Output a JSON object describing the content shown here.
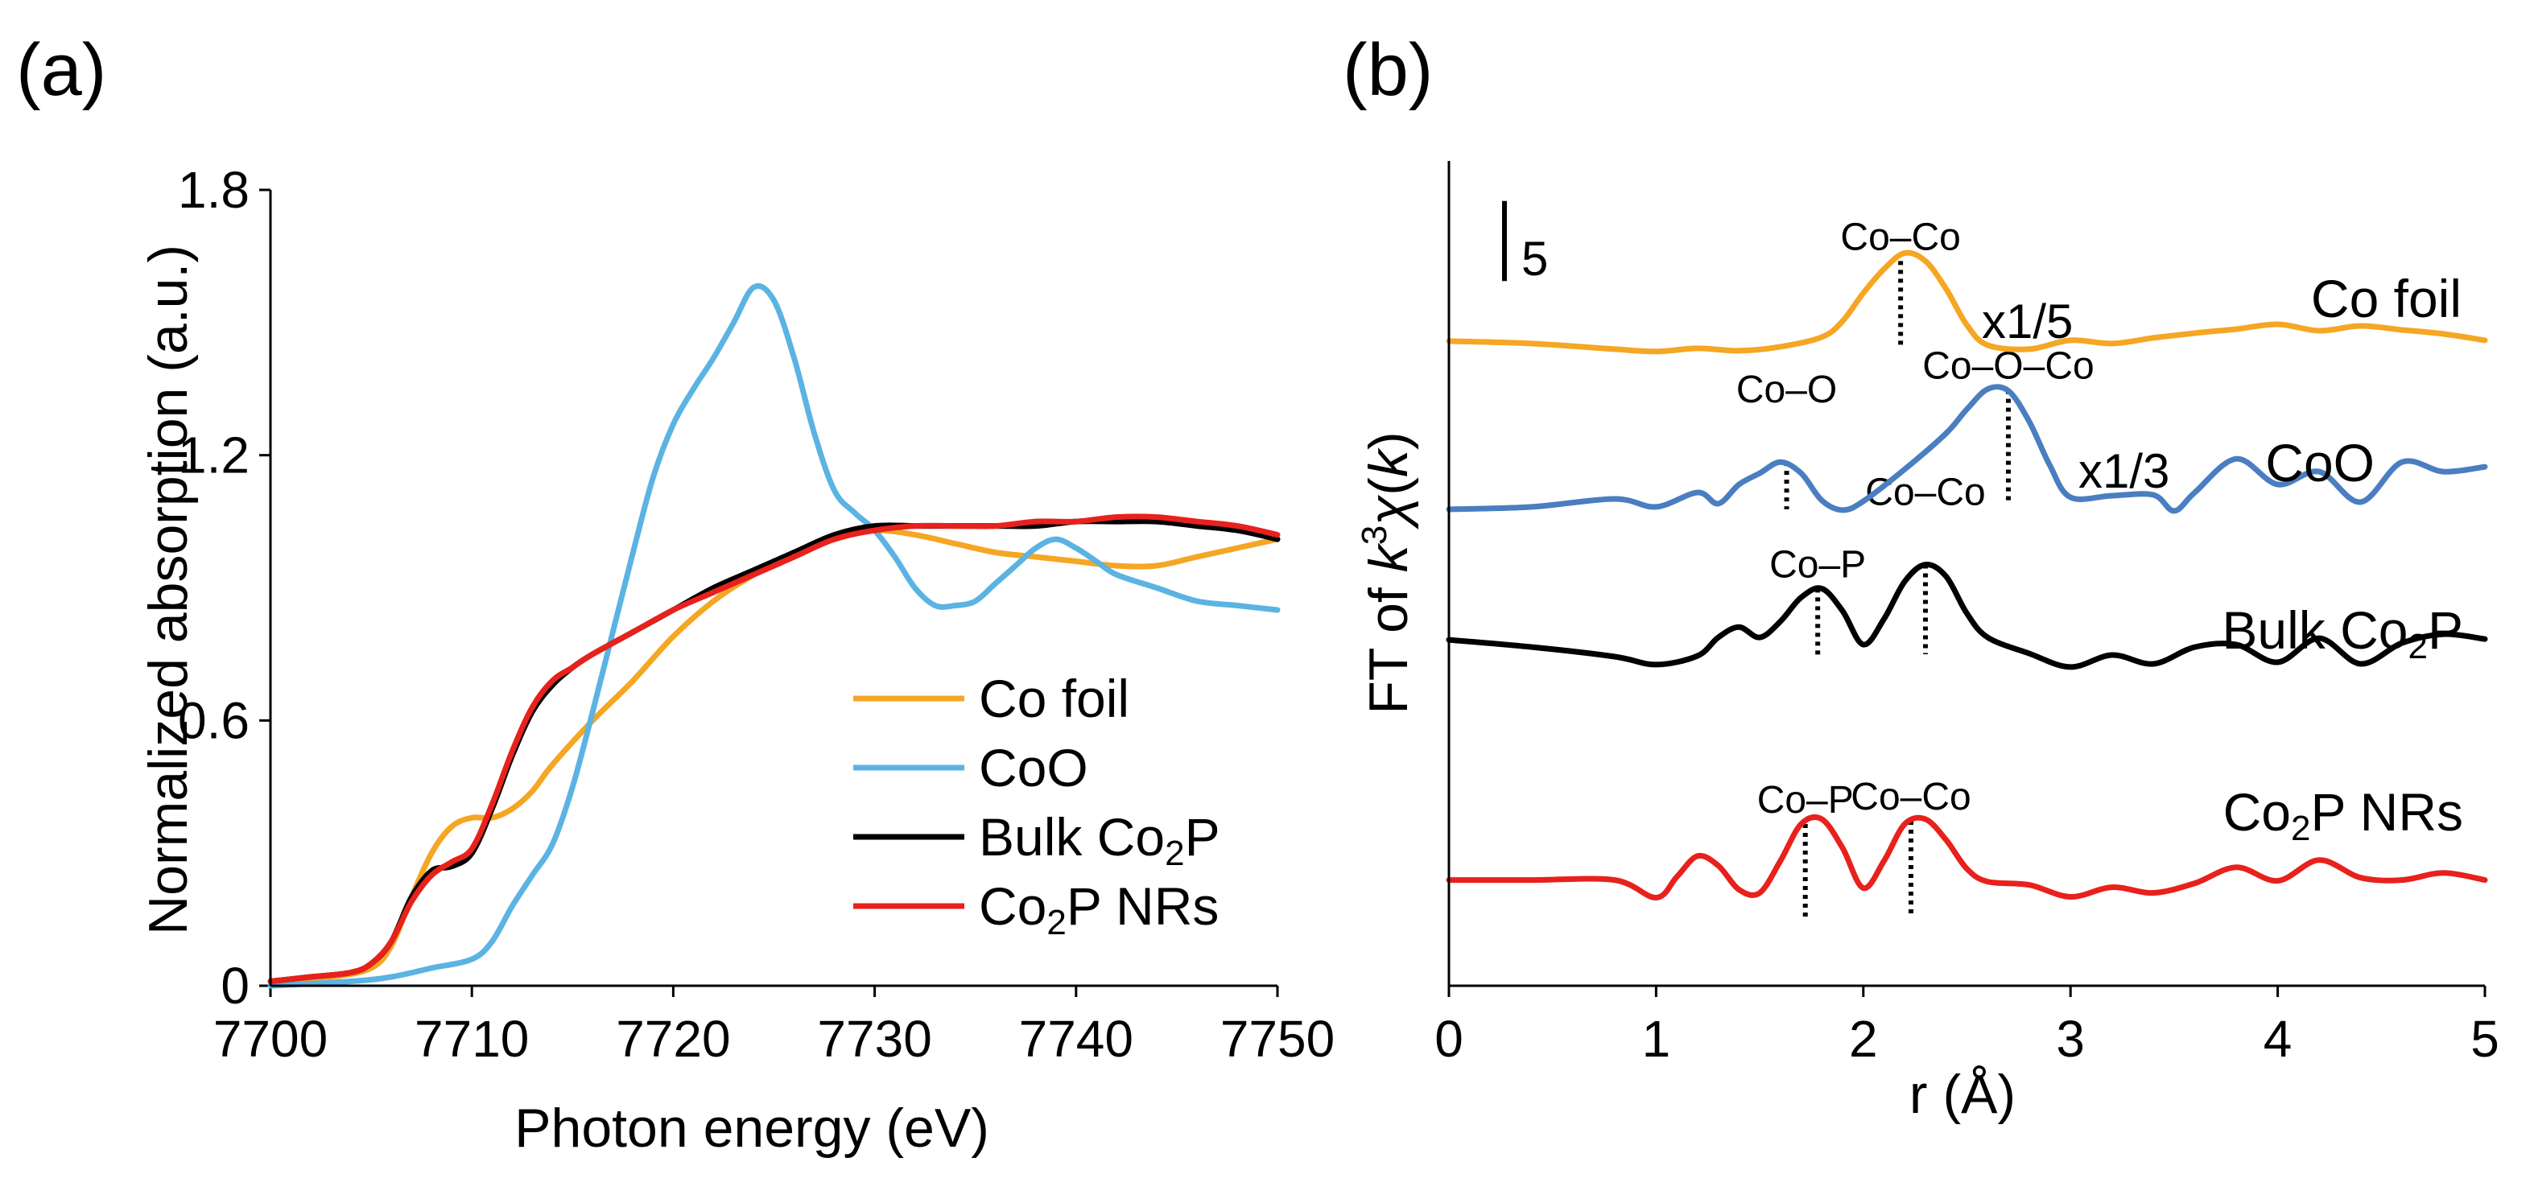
{
  "chart_data": [
    {
      "panel": "(a)",
      "type": "line",
      "xlabel": "Photon energy (eV)",
      "ylabel": "Normalized absorption (a.u.)",
      "xlim": [
        7700,
        7750
      ],
      "ylim": [
        0,
        1.8
      ],
      "xticks": [
        "7700",
        "7710",
        "7720",
        "7730",
        "7740",
        "7750"
      ],
      "yticks": [
        "0",
        "0.6",
        "1.2",
        "1.8"
      ],
      "legend_position": "bottom-right",
      "series": [
        {
          "name": "Co foil",
          "color": "#F5A623",
          "x": [
            7700,
            7703,
            7705,
            7706,
            7707,
            7708,
            7709,
            7710,
            7711,
            7712,
            7713,
            7714,
            7716,
            7718,
            7720,
            7722,
            7724,
            7726,
            7728,
            7730,
            7732,
            7734,
            7736,
            7738,
            7740,
            7742,
            7744,
            7746,
            7748,
            7750
          ],
          "y": [
            0.01,
            0.02,
            0.04,
            0.09,
            0.2,
            0.3,
            0.36,
            0.38,
            0.38,
            0.4,
            0.44,
            0.5,
            0.6,
            0.69,
            0.79,
            0.87,
            0.93,
            0.98,
            1.01,
            1.03,
            1.02,
            1.0,
            0.98,
            0.97,
            0.96,
            0.95,
            0.95,
            0.97,
            0.99,
            1.01
          ]
        },
        {
          "name": "CoO",
          "color": "#5BB3E3",
          "x": [
            7700,
            7704,
            7706,
            7708,
            7710,
            7711,
            7712,
            7713,
            7714,
            7715,
            7716,
            7717,
            7718,
            7719,
            7720,
            7721,
            7722,
            7723,
            7724,
            7725,
            7726,
            7727,
            7728,
            7729,
            7730,
            7731,
            7732,
            7733,
            7734,
            7735,
            7736,
            7737,
            7738,
            7739,
            7740,
            7741,
            7742,
            7744,
            7746,
            7748,
            7750
          ],
          "y": [
            0.0,
            0.01,
            0.02,
            0.04,
            0.06,
            0.1,
            0.18,
            0.25,
            0.32,
            0.45,
            0.62,
            0.8,
            0.98,
            1.15,
            1.27,
            1.35,
            1.42,
            1.5,
            1.58,
            1.55,
            1.42,
            1.25,
            1.12,
            1.07,
            1.03,
            0.97,
            0.9,
            0.86,
            0.86,
            0.87,
            0.91,
            0.95,
            0.99,
            1.01,
            0.99,
            0.96,
            0.93,
            0.9,
            0.87,
            0.86,
            0.85
          ]
        },
        {
          "name": "Bulk Co2P",
          "color": "#000000",
          "x": [
            7700,
            7702,
            7704,
            7705,
            7706,
            7707,
            7708,
            7709,
            7710,
            7711,
            7712,
            7713,
            7714,
            7715,
            7716,
            7718,
            7720,
            7722,
            7724,
            7726,
            7728,
            7730,
            7732,
            7734,
            7736,
            7738,
            7740,
            7742,
            7744,
            7746,
            7748,
            7750
          ],
          "y": [
            0.01,
            0.02,
            0.03,
            0.05,
            0.1,
            0.2,
            0.26,
            0.27,
            0.3,
            0.4,
            0.52,
            0.62,
            0.68,
            0.72,
            0.75,
            0.8,
            0.85,
            0.9,
            0.94,
            0.98,
            1.02,
            1.04,
            1.04,
            1.04,
            1.04,
            1.04,
            1.05,
            1.05,
            1.05,
            1.04,
            1.03,
            1.01
          ]
        },
        {
          "name": "Co2P NRs",
          "color": "#E8211C",
          "x": [
            7700,
            7702,
            7704,
            7705,
            7706,
            7707,
            7708,
            7709,
            7710,
            7711,
            7712,
            7713,
            7714,
            7715,
            7716,
            7718,
            7720,
            7722,
            7724,
            7726,
            7728,
            7730,
            7732,
            7734,
            7736,
            7738,
            7740,
            7742,
            7744,
            7746,
            7748,
            7750
          ],
          "y": [
            0.01,
            0.02,
            0.03,
            0.05,
            0.1,
            0.19,
            0.25,
            0.28,
            0.31,
            0.41,
            0.53,
            0.63,
            0.69,
            0.72,
            0.75,
            0.8,
            0.85,
            0.89,
            0.93,
            0.97,
            1.01,
            1.03,
            1.04,
            1.04,
            1.04,
            1.05,
            1.05,
            1.06,
            1.06,
            1.05,
            1.04,
            1.02
          ]
        }
      ],
      "legend": [
        {
          "main": "Co foil",
          "sub": "",
          "tail": "",
          "color": "#F5A623"
        },
        {
          "main": "CoO",
          "sub": "",
          "tail": "",
          "color": "#5BB3E3"
        },
        {
          "main": "Bulk Co",
          "sub": "2",
          "tail": "P",
          "color": "#000000"
        },
        {
          "main": "Co",
          "sub": "2",
          "tail": "P NRs",
          "color": "#E8211C"
        }
      ]
    },
    {
      "panel": "(b)",
      "type": "line",
      "xlabel": "r (Å)",
      "ylabel_parts": {
        "prefix": "FT of ",
        "k": "k",
        "exp": "3",
        "chi": "χ",
        "suffix": "(",
        "k2": "k",
        "end": ")"
      },
      "xlim": [
        0,
        5
      ],
      "ylim": [
        -3,
        100
      ],
      "xticks": [
        "0",
        "1",
        "2",
        "3",
        "4",
        "5"
      ],
      "scale_bar": {
        "label": "5",
        "value": 5
      },
      "series": [
        {
          "name": "Co foil",
          "color": "#F5A623",
          "label_main": "Co foil",
          "label_sub": "",
          "label_tail": "",
          "scale_label": "x1/5",
          "x": [
            0,
            0.4,
            0.8,
            1.0,
            1.2,
            1.4,
            1.6,
            1.8,
            1.9,
            2.0,
            2.1,
            2.2,
            2.3,
            2.4,
            2.5,
            2.6,
            2.8,
            3.0,
            3.2,
            3.4,
            3.6,
            3.8,
            4.0,
            4.2,
            4.4,
            4.6,
            4.8,
            5.0
          ],
          "y": [
            77.5,
            77.2,
            76.5,
            76.2,
            76.6,
            76.3,
            76.8,
            78.0,
            80.0,
            83.5,
            86.5,
            88.5,
            87.5,
            84.0,
            79.5,
            77.0,
            76.5,
            77.6,
            77.2,
            77.9,
            78.5,
            79.0,
            79.6,
            78.8,
            79.4,
            78.9,
            78.4,
            77.6
          ]
        },
        {
          "name": "CoO",
          "color": "#4A7EC0",
          "label_main": "CoO",
          "label_sub": "",
          "label_tail": "",
          "scale_label": "x1/3",
          "x": [
            0,
            0.4,
            0.8,
            1.0,
            1.2,
            1.3,
            1.4,
            1.5,
            1.6,
            1.7,
            1.8,
            1.9,
            2.0,
            2.2,
            2.4,
            2.5,
            2.6,
            2.7,
            2.8,
            2.9,
            3.0,
            3.2,
            3.4,
            3.5,
            3.6,
            3.8,
            4.0,
            4.2,
            4.4,
            4.6,
            4.8,
            5.0
          ],
          "y": [
            56.5,
            56.8,
            57.8,
            56.8,
            58.6,
            57.2,
            59.6,
            61.0,
            62.4,
            61.0,
            57.6,
            56.4,
            57.5,
            61.5,
            66.0,
            69.0,
            71.5,
            71.3,
            67.5,
            62.0,
            58.0,
            58.2,
            58.3,
            56.3,
            58.6,
            62.8,
            59.6,
            61.2,
            57.4,
            62.4,
            61.2,
            61.8
          ]
        },
        {
          "name": "Bulk Co2P",
          "color": "#000000",
          "label_main": "Bulk Co",
          "label_sub": "2",
          "label_tail": "P",
          "scale_label": "",
          "x": [
            0,
            0.4,
            0.8,
            1.0,
            1.2,
            1.3,
            1.4,
            1.5,
            1.6,
            1.7,
            1.8,
            1.9,
            2.0,
            2.1,
            2.2,
            2.3,
            2.4,
            2.5,
            2.6,
            2.8,
            3.0,
            3.2,
            3.4,
            3.6,
            3.8,
            4.0,
            4.2,
            4.4,
            4.6,
            4.8,
            5.0
          ],
          "y": [
            40.2,
            39.3,
            38.1,
            37.1,
            38.2,
            40.5,
            41.8,
            40.5,
            42.5,
            45.5,
            46.6,
            43.8,
            39.6,
            42.8,
            47.5,
            49.6,
            48.1,
            43.5,
            40.5,
            38.5,
            36.8,
            38.3,
            37.2,
            39.3,
            39.6,
            37.4,
            40.4,
            37.2,
            39.8,
            40.9,
            40.3
          ]
        },
        {
          "name": "Co2P NRs",
          "color": "#E8211C",
          "label_main": "Co",
          "label_sub": "2",
          "label_tail": "P NRs",
          "scale_label": "",
          "x": [
            0,
            0.4,
            0.8,
            1.0,
            1.1,
            1.2,
            1.3,
            1.4,
            1.5,
            1.6,
            1.7,
            1.8,
            1.9,
            2.0,
            2.1,
            2.2,
            2.3,
            2.4,
            2.5,
            2.6,
            2.8,
            3.0,
            3.2,
            3.4,
            3.6,
            3.8,
            4.0,
            4.2,
            4.4,
            4.6,
            4.8,
            5.0
          ],
          "y": [
            10.2,
            10.2,
            10.2,
            8.0,
            10.6,
            13.2,
            12.0,
            9.0,
            8.6,
            12.6,
            17.2,
            17.8,
            14.2,
            9.2,
            12.6,
            17.2,
            17.8,
            15.2,
            11.6,
            10.0,
            9.6,
            8.1,
            9.3,
            8.6,
            9.8,
            11.8,
            10.1,
            12.7,
            10.5,
            10.2,
            11.1,
            10.2
          ]
        }
      ],
      "annotations": [
        {
          "text": "Co–Co",
          "x": 2.18,
          "y_top": 87.5,
          "y_bottom": 76.6,
          "label_dy": 40
        },
        {
          "text": "Co–O",
          "x": 1.63,
          "y_top": 62.4,
          "y_bottom": 56.5,
          "label_dy": 100
        },
        {
          "text": "Co–O–Co",
          "x": 2.7,
          "y_top": 71.4,
          "y_bottom": 57.5,
          "label_dy": 40
        },
        {
          "text": "Co–P",
          "x": 1.78,
          "y_top": 46.6,
          "y_bottom": 37.9,
          "label_dy": 40
        },
        {
          "text": "Co–Co",
          "x": 2.3,
          "y_top": 49.6,
          "y_bottom": 38.4,
          "label_dy": 100
        },
        {
          "text": "Co–P",
          "x": 1.72,
          "y_top": 17.2,
          "y_bottom": 5.5,
          "label_dy": 40
        },
        {
          "text": "Co–Co",
          "x": 2.23,
          "y_top": 17.6,
          "y_bottom": 5.5,
          "label_dy": 40
        }
      ]
    }
  ]
}
